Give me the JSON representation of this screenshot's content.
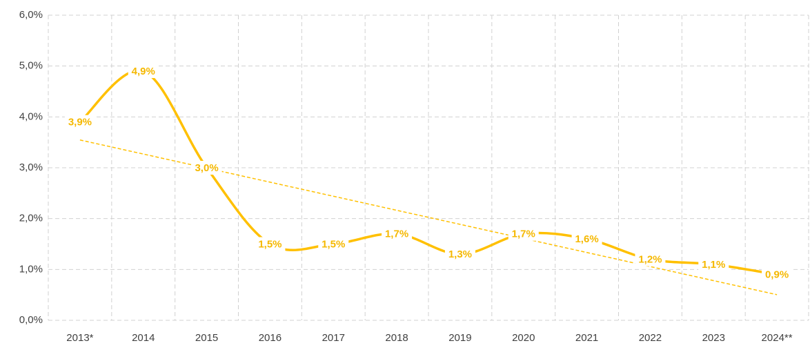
{
  "chart_data": {
    "type": "line",
    "categories": [
      "2013*",
      "2014",
      "2015",
      "2016",
      "2017",
      "2018",
      "2019",
      "2020",
      "2021",
      "2022",
      "2023",
      "2024**"
    ],
    "series": [
      {
        "color": "#ffc000",
        "values": [
          3.9,
          4.9,
          3.0,
          1.5,
          1.5,
          1.7,
          1.3,
          1.7,
          1.6,
          1.2,
          1.1,
          0.9
        ],
        "value_labels": [
          "3,9%",
          "4,9%",
          "3,0%",
          "1,5%",
          "1,5%",
          "1,7%",
          "1,3%",
          "1,7%",
          "1,6%",
          "1,2%",
          "1,1%",
          "0,9%"
        ]
      }
    ],
    "ylim": [
      0,
      6
    ],
    "yticks": [
      {
        "value": 0,
        "label": "0,0%"
      },
      {
        "value": 1,
        "label": "1,0%"
      },
      {
        "value": 2,
        "label": "2,0%"
      },
      {
        "value": 3,
        "label": "3,0%"
      },
      {
        "value": 4,
        "label": "4,0%"
      },
      {
        "value": 5,
        "label": "5,0%"
      },
      {
        "value": 6,
        "label": "6,0%"
      }
    ],
    "grid": true,
    "trendline": "linear",
    "smooth": true
  }
}
